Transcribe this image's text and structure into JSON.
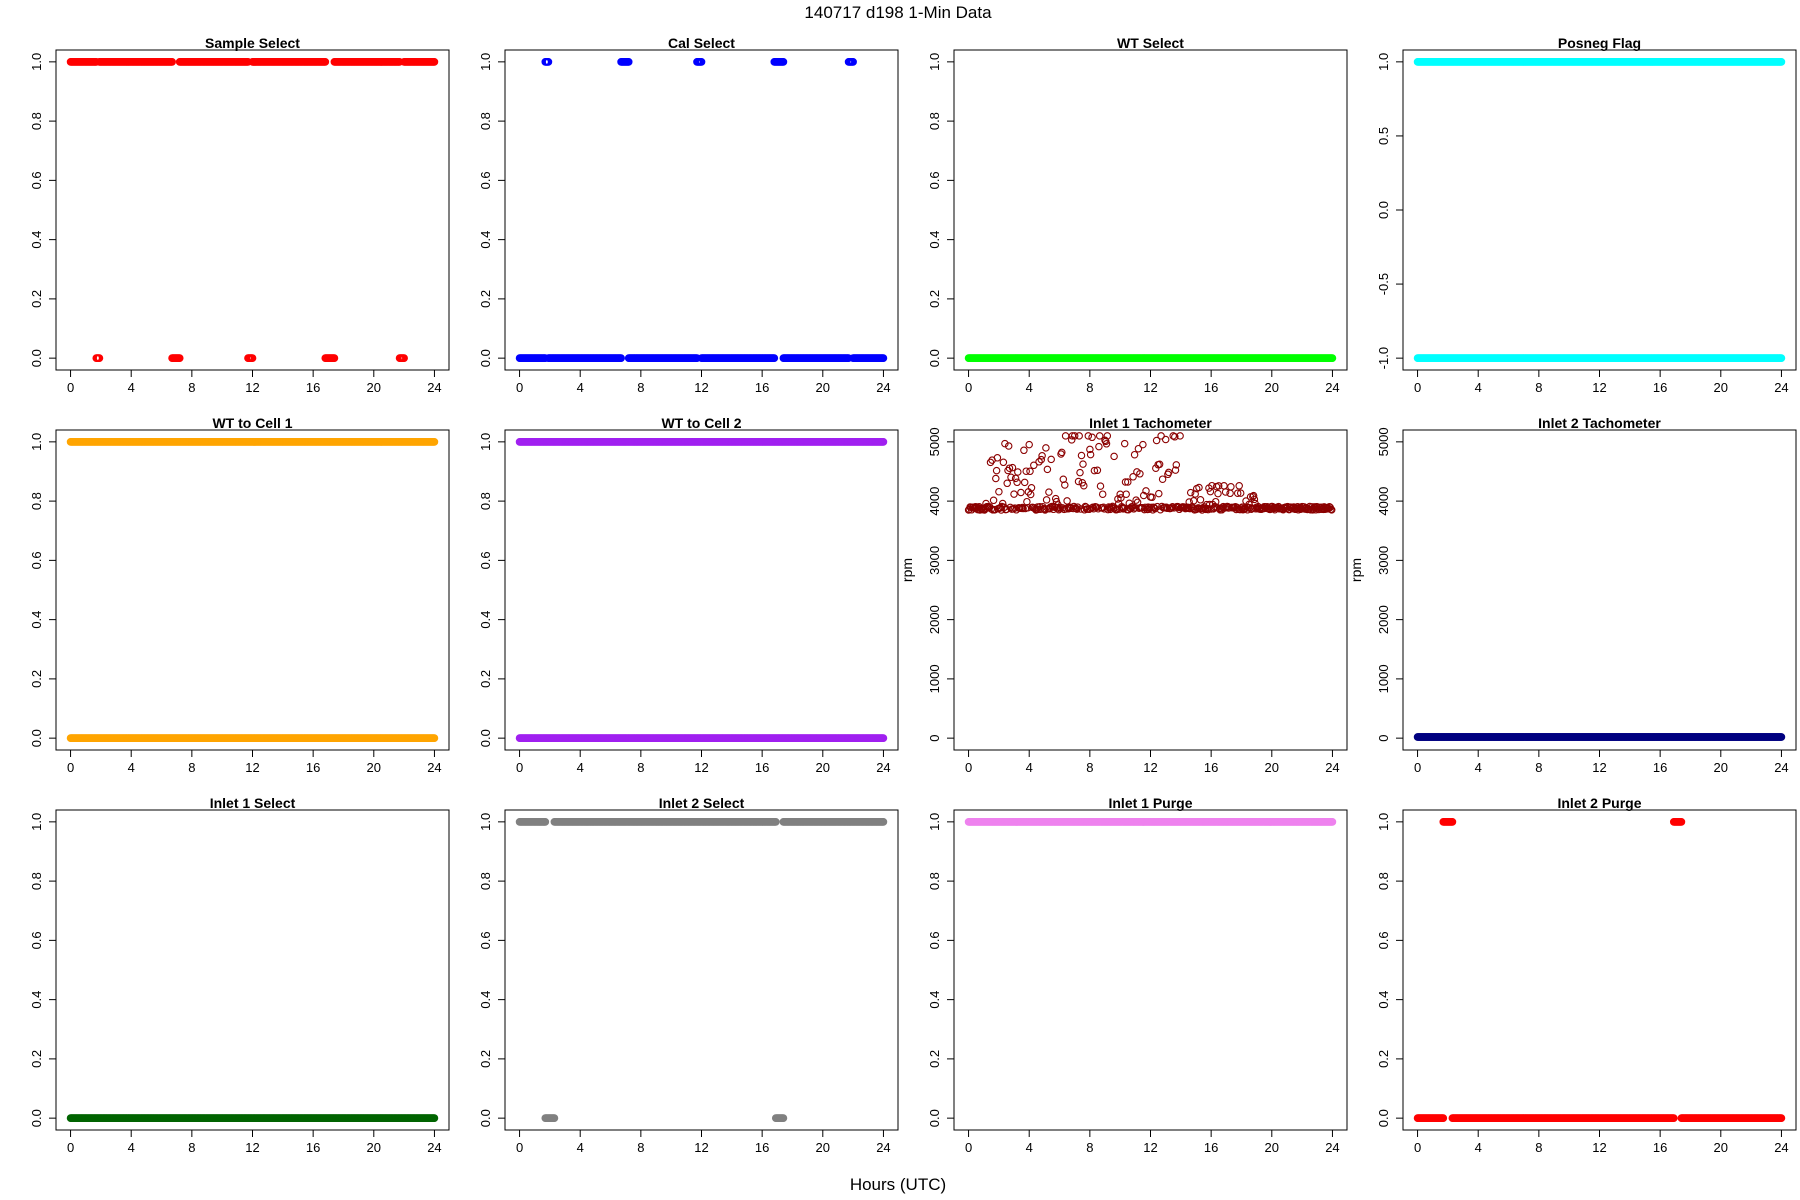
{
  "figure": {
    "title": "140717   d198   1-Min Data",
    "xlabel": "Hours (UTC)"
  },
  "chart_data": [
    {
      "type": "scatter",
      "title": "Sample Select",
      "color": "#ff0000",
      "xlabel": "",
      "ylabel": "",
      "xlim": [
        0,
        24
      ],
      "ylim": [
        0,
        1
      ],
      "xticks": [
        "0",
        "4",
        "8",
        "12",
        "16",
        "20",
        "24"
      ],
      "yticks": [
        "0.0",
        "0.2",
        "0.4",
        "0.6",
        "0.8",
        "1.0"
      ],
      "series": [
        {
          "y": 1,
          "segments": [
            [
              0,
              1.7
            ],
            [
              1.9,
              6.7
            ],
            [
              7.2,
              11.7
            ],
            [
              12.0,
              16.8
            ],
            [
              17.4,
              21.7
            ],
            [
              22.0,
              24
            ]
          ]
        },
        {
          "y": 0,
          "segments": [
            [
              1.7,
              1.9
            ],
            [
              6.7,
              7.2
            ],
            [
              11.7,
              12.0
            ],
            [
              16.8,
              17.4
            ],
            [
              21.7,
              22.0
            ]
          ]
        }
      ]
    },
    {
      "type": "scatter",
      "title": "Cal Select",
      "color": "#0000ff",
      "xlabel": "",
      "ylabel": "",
      "xlim": [
        0,
        24
      ],
      "ylim": [
        0,
        1
      ],
      "xticks": [
        "0",
        "4",
        "8",
        "12",
        "16",
        "20",
        "24"
      ],
      "yticks": [
        "0.0",
        "0.2",
        "0.4",
        "0.6",
        "0.8",
        "1.0"
      ],
      "series": [
        {
          "y": 1,
          "segments": [
            [
              1.7,
              1.9
            ],
            [
              6.7,
              7.2
            ],
            [
              11.7,
              12.0
            ],
            [
              16.8,
              17.4
            ],
            [
              21.7,
              22.0
            ]
          ]
        },
        {
          "y": 0,
          "segments": [
            [
              0,
              1.7
            ],
            [
              1.9,
              6.7
            ],
            [
              7.2,
              11.7
            ],
            [
              12.0,
              16.8
            ],
            [
              17.4,
              21.7
            ],
            [
              22.0,
              24
            ]
          ]
        }
      ]
    },
    {
      "type": "scatter",
      "title": "WT Select",
      "color": "#00ff00",
      "xlabel": "",
      "ylabel": "",
      "xlim": [
        0,
        24
      ],
      "ylim": [
        0,
        1
      ],
      "xticks": [
        "0",
        "4",
        "8",
        "12",
        "16",
        "20",
        "24"
      ],
      "yticks": [
        "0.0",
        "0.2",
        "0.4",
        "0.6",
        "0.8",
        "1.0"
      ],
      "series": [
        {
          "y": 0,
          "segments": [
            [
              0,
              24
            ]
          ]
        }
      ]
    },
    {
      "type": "scatter",
      "title": "Posneg Flag",
      "color": "#00ffff",
      "xlabel": "",
      "ylabel": "",
      "xlim": [
        0,
        24
      ],
      "ylim": [
        -1,
        1
      ],
      "xticks": [
        "0",
        "4",
        "8",
        "12",
        "16",
        "20",
        "24"
      ],
      "yticks": [
        "-1.0",
        "-0.5",
        "0.0",
        "0.5",
        "1.0"
      ],
      "series": [
        {
          "y": 1,
          "segments": [
            [
              0,
              24
            ]
          ]
        },
        {
          "y": -1,
          "segments": [
            [
              0,
              24
            ]
          ]
        }
      ]
    },
    {
      "type": "scatter",
      "title": "WT to Cell 1",
      "color": "#ffa500",
      "xlabel": "",
      "ylabel": "",
      "xlim": [
        0,
        24
      ],
      "ylim": [
        0,
        1
      ],
      "xticks": [
        "0",
        "4",
        "8",
        "12",
        "16",
        "20",
        "24"
      ],
      "yticks": [
        "0.0",
        "0.2",
        "0.4",
        "0.6",
        "0.8",
        "1.0"
      ],
      "series": [
        {
          "y": 1,
          "segments": [
            [
              0,
              24
            ]
          ]
        },
        {
          "y": 0,
          "segments": [
            [
              0,
              24
            ]
          ]
        }
      ]
    },
    {
      "type": "scatter",
      "title": "WT to Cell 2",
      "color": "#a020f0",
      "xlabel": "",
      "ylabel": "",
      "xlim": [
        0,
        24
      ],
      "ylim": [
        0,
        1
      ],
      "xticks": [
        "0",
        "4",
        "8",
        "12",
        "16",
        "20",
        "24"
      ],
      "yticks": [
        "0.0",
        "0.2",
        "0.4",
        "0.6",
        "0.8",
        "1.0"
      ],
      "series": [
        {
          "y": 1,
          "segments": [
            [
              0,
              24
            ]
          ]
        },
        {
          "y": 0,
          "segments": [
            [
              0,
              24
            ]
          ]
        }
      ]
    },
    {
      "type": "scatter",
      "title": "Inlet 1 Tachometer",
      "color": "#8b0000",
      "xlabel": "",
      "ylabel": "rpm",
      "xlim": [
        0,
        24
      ],
      "ylim": [
        0,
        5000
      ],
      "xticks": [
        "0",
        "4",
        "8",
        "12",
        "16",
        "20",
        "24"
      ],
      "yticks": [
        "0",
        "1000",
        "2000",
        "3000",
        "4000",
        "5000"
      ],
      "baseline": 3880,
      "noisy": true
    },
    {
      "type": "scatter",
      "title": "Inlet 2 Tachometer",
      "color": "#000080",
      "xlabel": "",
      "ylabel": "rpm",
      "xlim": [
        0,
        24
      ],
      "ylim": [
        0,
        5000
      ],
      "xticks": [
        "0",
        "4",
        "8",
        "12",
        "16",
        "20",
        "24"
      ],
      "yticks": [
        "0",
        "1000",
        "2000",
        "3000",
        "4000",
        "5000"
      ],
      "series": [
        {
          "y": 20,
          "segments": [
            [
              0,
              24
            ]
          ]
        }
      ]
    },
    {
      "type": "scatter",
      "title": "Inlet 1 Select",
      "color": "#006400",
      "xlabel": "",
      "ylabel": "",
      "xlim": [
        0,
        24
      ],
      "ylim": [
        0,
        1
      ],
      "xticks": [
        "0",
        "4",
        "8",
        "12",
        "16",
        "20",
        "24"
      ],
      "yticks": [
        "0.0",
        "0.2",
        "0.4",
        "0.6",
        "0.8",
        "1.0"
      ],
      "series": [
        {
          "y": 0,
          "segments": [
            [
              0,
              24
            ]
          ]
        }
      ]
    },
    {
      "type": "scatter",
      "title": "Inlet 2 Select",
      "color": "#808080",
      "xlabel": "",
      "ylabel": "",
      "xlim": [
        0,
        24
      ],
      "ylim": [
        0,
        1
      ],
      "xticks": [
        "0",
        "4",
        "8",
        "12",
        "16",
        "20",
        "24"
      ],
      "yticks": [
        "0.0",
        "0.2",
        "0.4",
        "0.6",
        "0.8",
        "1.0"
      ],
      "series": [
        {
          "y": 1,
          "segments": [
            [
              0,
              1.7
            ],
            [
              2.3,
              16.9
            ],
            [
              17.4,
              24
            ]
          ]
        },
        {
          "y": 0,
          "segments": [
            [
              1.7,
              2.3
            ],
            [
              16.9,
              17.4
            ]
          ]
        }
      ]
    },
    {
      "type": "scatter",
      "title": "Inlet 1 Purge",
      "color": "#ee82ee",
      "xlabel": "",
      "ylabel": "",
      "xlim": [
        0,
        24
      ],
      "ylim": [
        0,
        1
      ],
      "xticks": [
        "0",
        "4",
        "8",
        "12",
        "16",
        "20",
        "24"
      ],
      "yticks": [
        "0.0",
        "0.2",
        "0.4",
        "0.6",
        "0.8",
        "1.0"
      ],
      "series": [
        {
          "y": 1,
          "segments": [
            [
              0,
              24
            ]
          ]
        }
      ]
    },
    {
      "type": "scatter",
      "title": "Inlet 2 Purge",
      "color": "#ff0000",
      "xlabel": "",
      "ylabel": "",
      "xlim": [
        0,
        24
      ],
      "ylim": [
        0,
        1
      ],
      "xticks": [
        "0",
        "4",
        "8",
        "12",
        "16",
        "20",
        "24"
      ],
      "yticks": [
        "0.0",
        "0.2",
        "0.4",
        "0.6",
        "0.8",
        "1.0"
      ],
      "series": [
        {
          "y": 1,
          "segments": [
            [
              1.7,
              2.3
            ],
            [
              16.9,
              17.4
            ]
          ]
        },
        {
          "y": 0,
          "segments": [
            [
              0,
              1.7
            ],
            [
              2.3,
              16.9
            ],
            [
              17.4,
              24
            ]
          ]
        }
      ]
    }
  ]
}
